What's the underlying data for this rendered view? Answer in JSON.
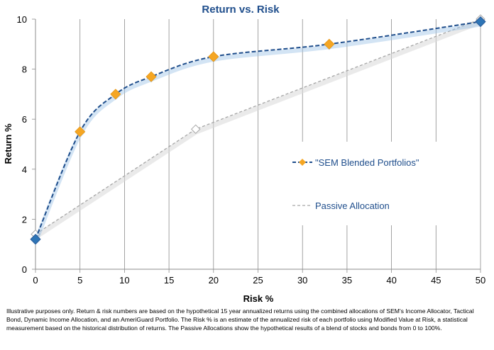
{
  "chart_data": {
    "type": "line",
    "title": "Return vs. Risk",
    "xlabel": "Risk %",
    "ylabel": "Return %",
    "xlim": [
      0,
      50
    ],
    "ylim": [
      0,
      10
    ],
    "xticks": [
      0,
      5,
      10,
      15,
      20,
      25,
      30,
      35,
      40,
      45,
      50
    ],
    "yticks": [
      0,
      2,
      4,
      6,
      8,
      10
    ],
    "grid": "vertical lines only",
    "legend_placement": "center-right",
    "series": [
      {
        "name": "\"SEM Blended Portfolios\"",
        "style": "dashed smooth line with diamond markers",
        "line_color": "#1F4E8C",
        "marker_color": "#F5A623",
        "x": [
          0,
          5,
          9,
          13,
          20,
          33,
          50
        ],
        "y": [
          1.2,
          5.5,
          7.0,
          7.7,
          8.5,
          9.0,
          9.9
        ]
      },
      {
        "name": "Passive Allocation",
        "style": "dashed line with hollow diamond markers",
        "line_color": "#A6A6A6",
        "marker_color": "#FFFFFF",
        "x": [
          0,
          18,
          50
        ],
        "y": [
          1.4,
          5.6,
          10.0
        ]
      }
    ]
  },
  "footnote": "Illustrative purposes only. Return & risk numbers are based on the hypothetical 15 year annualized returns using the combined allocations of SEM's Income Allocator, Tactical Bond, Dynamic Income Allocation, and an AmeriGuard Portfolio. The Risk % is an estimate of the annualized risk of each portfolio using Modified Value at Risk, a statistical measurement based on the historical distribution of returns. The Passive Allocations show the hypothetical results of a blend of stocks and bonds from 0 to 100%."
}
